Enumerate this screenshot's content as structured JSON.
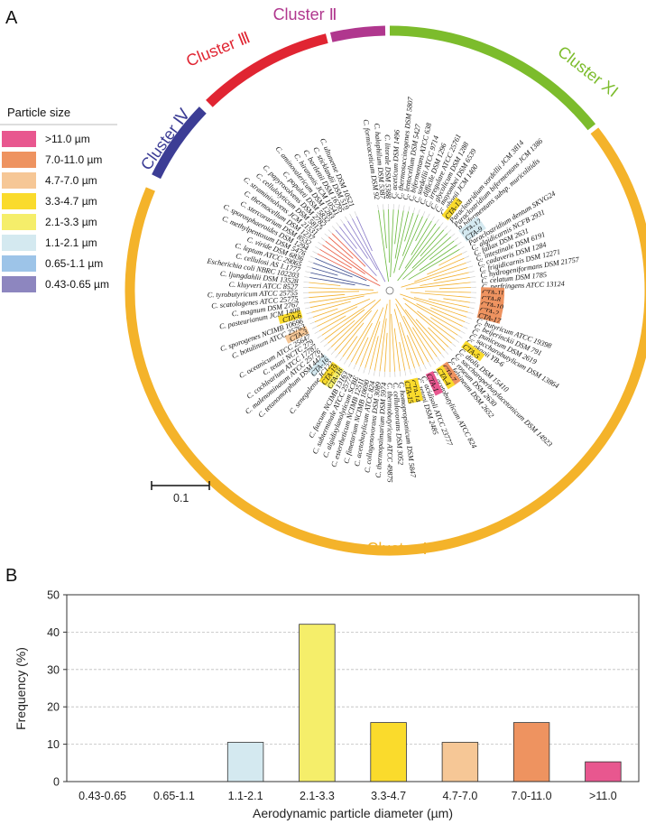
{
  "figure": {
    "panel_a_label": "A",
    "panel_b_label": "B",
    "scale_bar_label": "0.1"
  },
  "legend": {
    "title": "Particle size",
    "items": [
      {
        "label": ">11.0 µm",
        "color": "#e8578f"
      },
      {
        "label": "7.0-11.0 µm",
        "color": "#ee9360"
      },
      {
        "label": "4.7-7.0 µm",
        "color": "#f6c796"
      },
      {
        "label": "3.3-4.7 µm",
        "color": "#fadb2c"
      },
      {
        "label": "2.1-3.3 µm",
        "color": "#f5ee6a"
      },
      {
        "label": "1.1-2.1 µm",
        "color": "#d4e9f0"
      },
      {
        "label": "0.65-1.1 µm",
        "color": "#9dc4e8"
      },
      {
        "label": "0.43-0.65 µm",
        "color": "#8d86bf"
      }
    ]
  },
  "clusters": [
    {
      "label": "Cluster Ⅰ",
      "color": "#f4b32a"
    },
    {
      "label": "Cluster Ⅲ",
      "color": "#e02532"
    },
    {
      "label": "Cluster Ⅱ",
      "color": "#b0378e"
    },
    {
      "label": "Cluster Ⅳ",
      "color": "#3c3d95"
    },
    {
      "label": "Cluster XI",
      "color": "#7cbc2c"
    }
  ],
  "tree_leaves": [
    {
      "label": "C. formicaceticum DSM 92",
      "cluster": 4
    },
    {
      "label": "C. halophilum DSM 5387",
      "cluster": 4
    },
    {
      "label": "C. litorale DSM 5388",
      "cluster": 4
    },
    {
      "label": "C. aceticum DSM 1496",
      "cluster": 4
    },
    {
      "label": "C. thermosuccinogenes DSM 5807",
      "cluster": 4
    },
    {
      "label": "C. lentocellum DSM 5427",
      "cluster": 4
    },
    {
      "label": "C. bifermentans ATCC 638",
      "cluster": 4
    },
    {
      "label": "C. sordellii ATCC 9714",
      "cluster": 4
    },
    {
      "label": "C. difficile DSM 1296",
      "cluster": 4
    },
    {
      "label": "C. irregulare ATCC 25761",
      "cluster": 4
    },
    {
      "label": "C. glycolicum DSM 1288",
      "cluster": 4
    },
    {
      "label": "C. mayombei DSM 6539",
      "cluster": 4
    },
    {
      "label": "C. ghonii JCM 1400",
      "cluster": 4
    },
    {
      "label": "CTA-13",
      "cluster": 4,
      "tag": 3
    },
    {
      "label": "Paraclostridium sordellii JCM 3814",
      "cluster": 4
    },
    {
      "label": "Paraclostridium bifermentans JCM 1386",
      "cluster": 4
    },
    {
      "label": "P. bifermentans subsp. muricolitidis",
      "cluster": 4
    },
    {
      "label": "CTA-12",
      "cluster": 4,
      "tag": 5
    },
    {
      "label": "CTA-9",
      "cluster": 4,
      "tag": 5
    },
    {
      "label": "Paraclostridium dentum SKVG24",
      "cluster": 4
    },
    {
      "label": "C. algidicarnis NCFB 2931",
      "cluster": 0
    },
    {
      "label": "C. fallax DSM 2631",
      "cluster": 0
    },
    {
      "label": "C. intestinale DSM 6191",
      "cluster": 0
    },
    {
      "label": "C. cadaveris DSM 1284",
      "cluster": 0
    },
    {
      "label": "C. frigidicarnis DSM 12271",
      "cluster": 0
    },
    {
      "label": "C. hydrogeniformans DSM 21757",
      "cluster": 0
    },
    {
      "label": "C. celatum DSM 1785",
      "cluster": 0
    },
    {
      "label": "C. perfringens ATCC 13124",
      "cluster": 0
    },
    {
      "label": "CTA-11",
      "cluster": 0,
      "tag": 1
    },
    {
      "label": "CTA-8",
      "cluster": 0,
      "tag": 1
    },
    {
      "label": "CTA-10",
      "cluster": 0,
      "tag": 1
    },
    {
      "label": "CTA-2",
      "cluster": 0,
      "tag": 1
    },
    {
      "label": "CTA-17",
      "cluster": 0,
      "tag": 1
    },
    {
      "label": "C. butyricum ATCC 19398",
      "cluster": 0
    },
    {
      "label": "C. beijerinckii DSM 791",
      "cluster": 0
    },
    {
      "label": "C. puniceum DSM 2619",
      "cluster": 0
    },
    {
      "label": "C. saccharobutylicum DSM 13864",
      "cluster": 0
    },
    {
      "label": "C. akagii YB-6",
      "cluster": 0
    },
    {
      "label": "CTA-5",
      "cluster": 0,
      "tag": 3
    },
    {
      "label": "C. diolis DSM 15410",
      "cluster": 0
    },
    {
      "label": "C. saccharoperbutylacetonicum DSM 14923",
      "cluster": 0
    },
    {
      "label": "C. roseum DSM 2630",
      "cluster": 0
    },
    {
      "label": "C. felsineum DSM 2652",
      "cluster": 0
    },
    {
      "label": "CTA-7",
      "cluster": 0,
      "tag": 1
    },
    {
      "label": "CTA-4",
      "cluster": 0,
      "tag": 3
    },
    {
      "label": "C. acetobutylicum ATCC 824",
      "cluster": 0
    },
    {
      "label": "CTA-1",
      "cluster": 0,
      "tag": 0
    },
    {
      "label": "C. acidisoli ATCC 23777",
      "cluster": 0
    },
    {
      "label": "C. tetani DSM 2485",
      "cluster": 0
    },
    {
      "label": "CTA-14",
      "cluster": 0,
      "tag": 3
    },
    {
      "label": "CTA-15",
      "cluster": 0,
      "tag": 3
    },
    {
      "label": "C. homopropionicum DSM 5847",
      "cluster": 0
    },
    {
      "label": "C. cellulovorans DSM 3052",
      "cluster": 0
    },
    {
      "label": "C. thermobutyricum ATCC 49875",
      "cluster": 0
    },
    {
      "label": "C. thermopalmarium DSM 5974",
      "cluster": 0
    },
    {
      "label": "C. collagenovorans DSM 3089",
      "cluster": 0
    },
    {
      "label": "C. acetobutylicum ATCC 824",
      "cluster": 0
    },
    {
      "label": "C. fimetarium NCIMB 10690",
      "cluster": 0
    },
    {
      "label": "C. estertheticum NCIMB 12511",
      "cluster": 0
    },
    {
      "label": "C. algidixylanolyticum SCBE",
      "cluster": 0
    },
    {
      "label": "C. subterminale ATCC 25774",
      "cluster": 0
    },
    {
      "label": "C. fuscum NCIMB 13163",
      "cluster": 0
    },
    {
      "label": "CTA-18",
      "cluster": 0,
      "tag": 4
    },
    {
      "label": "CTA-19",
      "cluster": 0,
      "tag": 3
    },
    {
      "label": "C. senegalense JC122",
      "cluster": 0
    },
    {
      "label": "CTA-16",
      "cluster": 0,
      "tag": 5
    },
    {
      "label": "C. tetanomorphum DSM 4474",
      "cluster": 0
    },
    {
      "label": "C. malenominatum ATCC 25776",
      "cluster": 0
    },
    {
      "label": "C. cochlearium ATCC 17787",
      "cluster": 0
    },
    {
      "label": "C. tetani NCTC 279",
      "cluster": 0
    },
    {
      "label": "C. oceanicum ATCC 25647",
      "cluster": 0
    },
    {
      "label": "CTA-3",
      "cluster": 0,
      "tag": 2
    },
    {
      "label": "C. botulinum ATCC 25763",
      "cluster": 0
    },
    {
      "label": "C. sporogenes NCIMB 10696",
      "cluster": 0
    },
    {
      "label": "CTA-6",
      "cluster": 0,
      "tag": 3
    },
    {
      "label": "C. pasteurianum JCM 1408",
      "cluster": 0
    },
    {
      "label": "C. magnum DSM 2767",
      "cluster": 0
    },
    {
      "label": "C. scatologenes ATCC 25775",
      "cluster": 0
    },
    {
      "label": "C. tyrobutyricum ATCC 25755",
      "cluster": 0
    },
    {
      "label": "C. kluyveri ATCC 8527",
      "cluster": 0
    },
    {
      "label": "C. ljungdahlii DSM 13528",
      "cluster": 0
    },
    {
      "label": "Escherichia coli NBRC 102203",
      "cluster": 3
    },
    {
      "label": "C. cellulosi AS 1.1777",
      "cluster": 3
    },
    {
      "label": "C. leptum ATCC 29065",
      "cluster": 3
    },
    {
      "label": "C. viride DSM 6836",
      "cluster": 3
    },
    {
      "label": "C. methylpentosum DSM 5476",
      "cluster": 3
    },
    {
      "label": "C. sporosphaeroides DSM 1294",
      "cluster": 1
    },
    {
      "label": "C. stercorarium DSM 8532",
      "cluster": 1
    },
    {
      "label": "C. thermocellum DSM 1237",
      "cluster": 1
    },
    {
      "label": "C. straminisolvens JCM 21531",
      "cluster": 1
    },
    {
      "label": "C. cellulolyticum DSM 5812",
      "cluster": 1
    },
    {
      "label": "C. papyrosolvens DSM 2782",
      "cluster": 1
    },
    {
      "label": "C. populeti DSM 5832",
      "cluster": 2
    },
    {
      "label": "C. aminovalericum DSM 1283",
      "cluster": 2
    },
    {
      "label": "C. hiranonis JCM 10541",
      "cluster": 2
    },
    {
      "label": "C. bartlettii DSM 16795",
      "cluster": 2
    },
    {
      "label": "C. sticklandii DSM 519",
      "cluster": 2
    },
    {
      "label": "C. ultunense DSM 10521",
      "cluster": 2
    }
  ],
  "chart_data": {
    "type": "bar",
    "title": "",
    "xlabel": "Aerodynamic particle diameter (µm)",
    "ylabel": "Frequency (%)",
    "ylim": [
      0,
      50
    ],
    "yticks": [
      0,
      10,
      20,
      30,
      40,
      50
    ],
    "grid": true,
    "categories": [
      "0.43-0.65",
      "0.65-1.1",
      "1.1-2.1",
      "2.1-3.3",
      "3.3-4.7",
      "4.7-7.0",
      "7.0-11.0",
      ">11.0"
    ],
    "values": [
      0,
      0,
      10.5,
      42.1,
      15.8,
      10.5,
      15.8,
      5.3
    ],
    "colors": [
      "#8d86bf",
      "#9dc4e8",
      "#d4e9f0",
      "#f5ee6a",
      "#fadb2c",
      "#f6c796",
      "#ee9360",
      "#e8578f"
    ]
  }
}
